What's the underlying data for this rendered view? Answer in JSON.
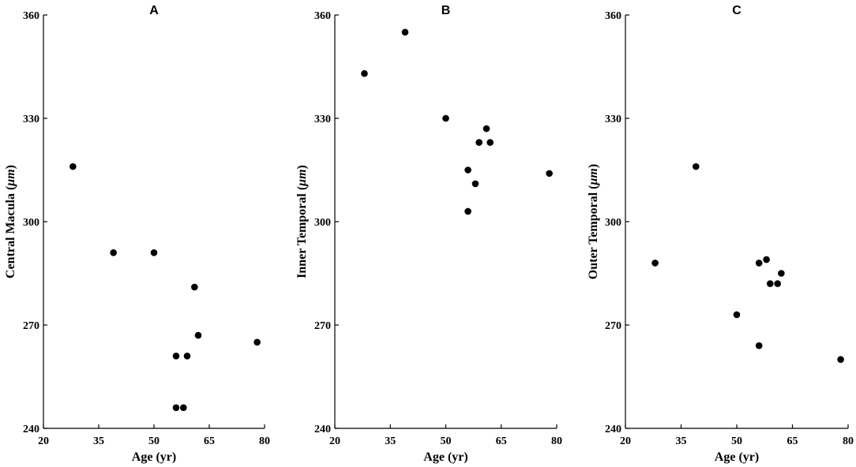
{
  "chart_data": [
    {
      "type": "scatter",
      "title": "A",
      "xlabel": "Age (yr)",
      "ylabel": "Central Macula (μm)",
      "ylabel_parts": {
        "before": "Central Macula (",
        "unit": "μm",
        "after": ")"
      },
      "xlim": [
        20,
        80
      ],
      "ylim": [
        240,
        360
      ],
      "xticks": [
        20,
        35,
        50,
        65,
        80
      ],
      "yticks": [
        240,
        270,
        300,
        330,
        360
      ],
      "x": [
        28,
        39,
        50,
        61,
        56,
        56,
        59,
        62,
        58,
        78
      ],
      "y": [
        316,
        291,
        291,
        281,
        261,
        246,
        261,
        267,
        246,
        265
      ]
    },
    {
      "type": "scatter",
      "title": "B",
      "xlabel": "Age (yr)",
      "ylabel": "Inner Temporal (μm)",
      "ylabel_parts": {
        "before": "Inner Temporal (",
        "unit": "μm",
        "after": ")"
      },
      "xlim": [
        20,
        80
      ],
      "ylim": [
        240,
        360
      ],
      "xticks": [
        20,
        35,
        50,
        65,
        80
      ],
      "yticks": [
        240,
        270,
        300,
        330,
        360
      ],
      "x": [
        28,
        39,
        50,
        59,
        61,
        62,
        56,
        58,
        56,
        78
      ],
      "y": [
        343,
        355,
        330,
        323,
        327,
        323,
        315,
        311,
        303,
        314
      ]
    },
    {
      "type": "scatter",
      "title": "C",
      "xlabel": "Age (yr)",
      "ylabel": "Outer Temporal (μm)",
      "ylabel_parts": {
        "before": "Outer Temporal (",
        "unit": "μm",
        "after": ")"
      },
      "xlim": [
        20,
        80
      ],
      "ylim": [
        240,
        360
      ],
      "xticks": [
        20,
        35,
        50,
        65,
        80
      ],
      "yticks": [
        240,
        270,
        300,
        330,
        360
      ],
      "x": [
        28,
        39,
        50,
        56,
        58,
        59,
        61,
        62,
        56,
        78
      ],
      "y": [
        288,
        316,
        273,
        288,
        289,
        282,
        282,
        285,
        264,
        260
      ]
    }
  ]
}
